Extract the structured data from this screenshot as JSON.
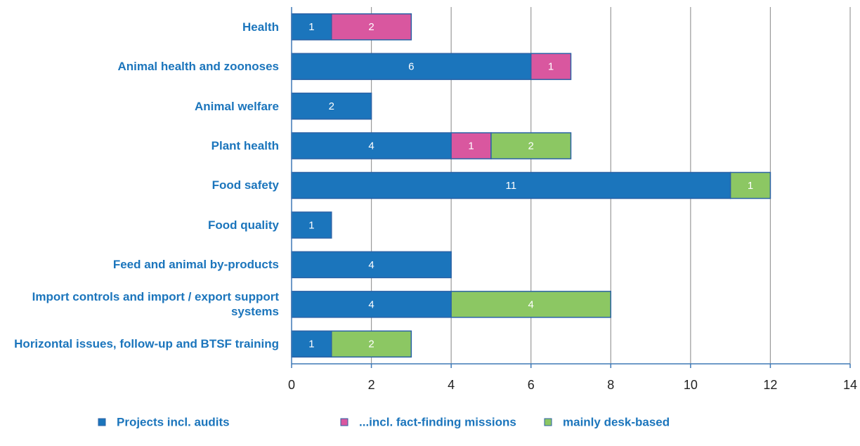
{
  "chart_data": {
    "type": "stacked-barh",
    "categories": [
      "Health",
      "Animal health and zoonoses",
      "Animal welfare",
      "Plant health",
      "Food safety",
      "Food quality",
      "Feed and animal by-products",
      "Import controls and import / export support systems",
      "Horizontal issues, follow-up and BTSF training"
    ],
    "series": [
      {
        "name": "Projects incl. audits",
        "color": "#1b75bc",
        "values": [
          1,
          6,
          2,
          4,
          11,
          1,
          4,
          4,
          1
        ]
      },
      {
        "name": "...incl. fact-finding missions",
        "color": "#d9579f",
        "values": [
          2,
          1,
          null,
          1,
          null,
          null,
          null,
          null,
          null
        ]
      },
      {
        "name": "mainly desk-based",
        "color": "#8cc763",
        "values": [
          null,
          null,
          null,
          2,
          1,
          null,
          null,
          4,
          2
        ]
      }
    ],
    "xlim": [
      0,
      14
    ],
    "xticks": [
      0,
      2,
      4,
      6,
      8,
      10,
      12,
      14
    ],
    "grid": true
  }
}
